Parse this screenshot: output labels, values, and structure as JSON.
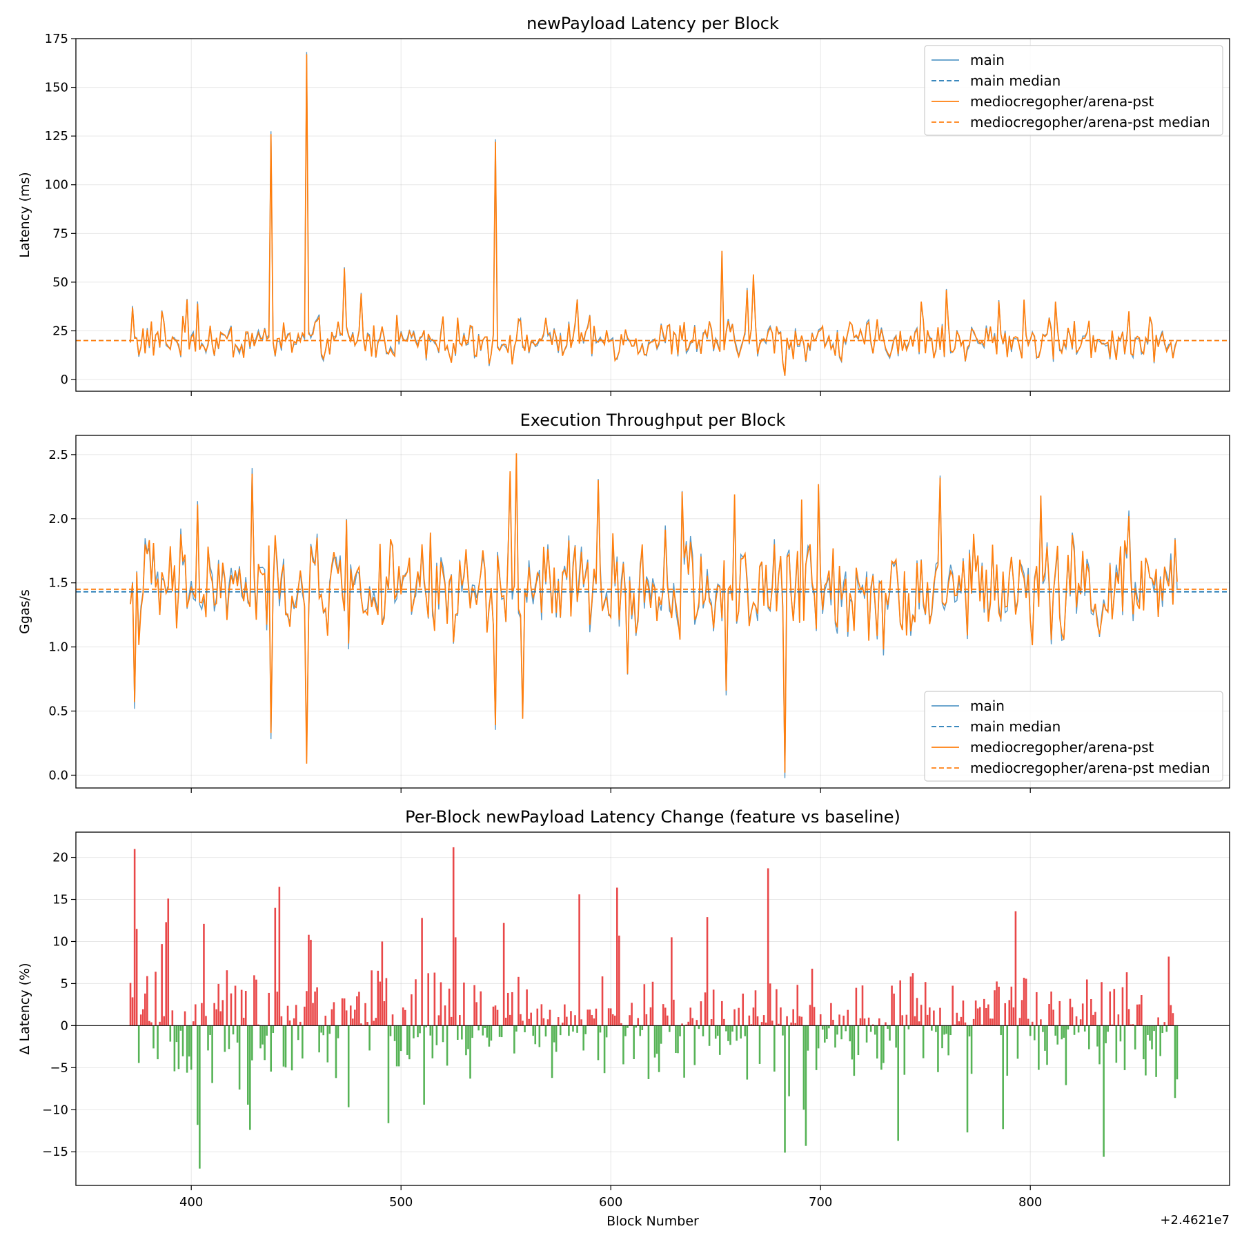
{
  "colors": {
    "main": "#1f77b4",
    "feature": "#ff7f0e",
    "increase": "#e41a1c",
    "decrease": "#2ca02c"
  },
  "xaxis": {
    "label": "Block Number",
    "offset_text": "+2.4621e7",
    "ticks": [
      400,
      500,
      600,
      700,
      800
    ],
    "range": [
      345,
      895
    ]
  },
  "chart_data": [
    {
      "type": "line",
      "title": "newPayload Latency per Block",
      "ylabel": "Latency (ms)",
      "ylim": [
        -6,
        175
      ],
      "yticks": [
        0,
        25,
        50,
        75,
        100,
        125,
        150,
        175
      ],
      "grid": true,
      "legend_position": "upper-right",
      "x_start": 371,
      "x_end": 870,
      "series": [
        {
          "name": "main",
          "style": "solid",
          "color": "main",
          "base": 20,
          "noise": 8
        },
        {
          "name": "main median",
          "style": "dashed",
          "color": "main",
          "value": 20
        },
        {
          "name": "mediocregopher/arena-pst",
          "style": "solid",
          "color": "feature",
          "base": 20,
          "noise": 8
        },
        {
          "name": "mediocregopher/arena-pst median",
          "style": "dashed",
          "color": "feature",
          "value": 20
        }
      ],
      "spikes": [
        [
          372,
          37
        ],
        [
          386,
          35
        ],
        [
          398,
          41
        ],
        [
          403,
          39
        ],
        [
          438,
          126
        ],
        [
          455,
          167
        ],
        [
          473,
          57
        ],
        [
          481,
          44
        ],
        [
          498,
          33
        ],
        [
          545,
          122
        ],
        [
          584,
          41
        ],
        [
          653,
          66
        ],
        [
          665,
          46
        ],
        [
          668,
          54
        ],
        [
          683,
          2
        ],
        [
          748,
          40
        ],
        [
          760,
          46
        ],
        [
          785,
          40
        ],
        [
          797,
          41
        ],
        [
          812,
          40
        ],
        [
          847,
          35
        ]
      ]
    },
    {
      "type": "line",
      "title": "Execution Throughput per Block",
      "ylabel": "Ggas/s",
      "ylim": [
        -0.1,
        2.65
      ],
      "yticks": [
        0.0,
        0.5,
        1.0,
        1.5,
        2.0,
        2.5
      ],
      "grid": true,
      "legend_position": "lower-right",
      "x_start": 371,
      "x_end": 870,
      "series": [
        {
          "name": "main",
          "style": "solid",
          "color": "main",
          "base": 1.43,
          "noise": 0.3
        },
        {
          "name": "main median",
          "style": "dashed",
          "color": "main",
          "value": 1.43
        },
        {
          "name": "mediocregopher/arena-pst",
          "style": "solid",
          "color": "feature",
          "base": 1.45,
          "noise": 0.3
        },
        {
          "name": "mediocregopher/arena-pst median",
          "style": "dashed",
          "color": "feature",
          "value": 1.45
        }
      ],
      "spikes": [
        [
          373,
          0.57
        ],
        [
          378,
          1.8
        ],
        [
          403,
          2.11
        ],
        [
          429,
          2.35
        ],
        [
          438,
          0.33
        ],
        [
          455,
          0.09
        ],
        [
          474,
          1.99
        ],
        [
          545,
          0.39
        ],
        [
          552,
          2.37
        ],
        [
          555,
          2.51
        ],
        [
          558,
          0.44
        ],
        [
          594,
          2.3
        ],
        [
          608,
          0.79
        ],
        [
          634,
          2.21
        ],
        [
          655,
          0.66
        ],
        [
          659,
          2.19
        ],
        [
          683,
          0.02
        ],
        [
          691,
          2.15
        ],
        [
          699,
          2.27
        ],
        [
          757,
          2.32
        ],
        [
          805,
          2.18
        ],
        [
          847,
          2.02
        ]
      ]
    },
    {
      "type": "bar",
      "title": "Per-Block newPayload Latency Change (feature vs baseline)",
      "ylabel": "Δ Latency (%)",
      "ylim": [
        -19,
        23
      ],
      "yticks": [
        -15,
        -10,
        -5,
        0,
        5,
        10,
        15,
        20
      ],
      "grid": true,
      "x_start": 371,
      "x_end": 870,
      "spikes": [
        [
          373,
          21
        ],
        [
          374,
          11.5
        ],
        [
          386,
          9.7
        ],
        [
          388,
          12.3
        ],
        [
          389,
          15.1
        ],
        [
          403,
          -11.8
        ],
        [
          404,
          -17
        ],
        [
          406,
          12.1
        ],
        [
          423,
          -7.6
        ],
        [
          427,
          -9.4
        ],
        [
          428,
          -12.4
        ],
        [
          440,
          14
        ],
        [
          442,
          16.5
        ],
        [
          456,
          10.8
        ],
        [
          457,
          10.2
        ],
        [
          475,
          -9.7
        ],
        [
          491,
          10
        ],
        [
          494,
          -11.6
        ],
        [
          510,
          12.8
        ],
        [
          511,
          -9.4
        ],
        [
          525,
          21.2
        ],
        [
          526,
          10.5
        ],
        [
          549,
          12.2
        ],
        [
          585,
          15.6
        ],
        [
          603,
          16.4
        ],
        [
          604,
          10.7
        ],
        [
          629,
          10.5
        ],
        [
          646,
          12.9
        ],
        [
          675,
          18.7
        ],
        [
          683,
          -15.1
        ],
        [
          685,
          -8.4
        ],
        [
          692,
          -10
        ],
        [
          693,
          -14.3
        ],
        [
          737,
          -13.7
        ],
        [
          770,
          -12.7
        ],
        [
          793,
          13.6
        ],
        [
          787,
          -12.3
        ],
        [
          835,
          -15.6
        ],
        [
          866,
          8.2
        ],
        [
          869,
          -8.6
        ]
      ]
    }
  ]
}
